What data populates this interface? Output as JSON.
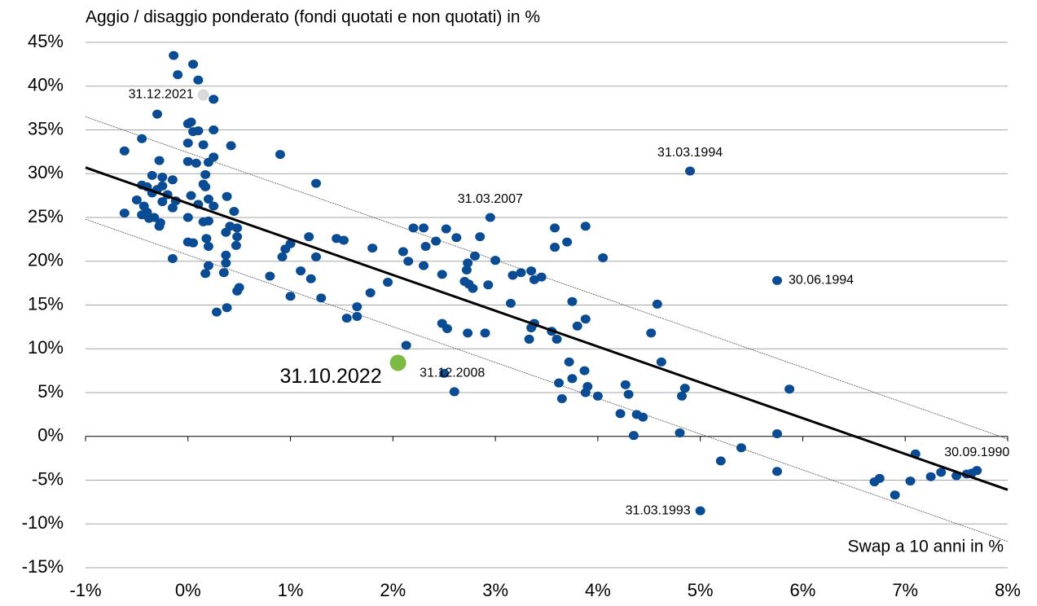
{
  "chart_data": {
    "type": "scatter",
    "title": "Aggio / disaggio ponderato (fondi quotati e non quotati) in %",
    "x_label": "Swap a 10 anni in %",
    "xlim": [
      -1,
      8
    ],
    "xticks": [
      {
        "value": -1,
        "label": "-1%"
      },
      {
        "value": 0,
        "label": "0%"
      },
      {
        "value": 1,
        "label": "1%"
      },
      {
        "value": 2,
        "label": "2%"
      },
      {
        "value": 3,
        "label": "3%"
      },
      {
        "value": 4,
        "label": "4%"
      },
      {
        "value": 5,
        "label": "5%"
      },
      {
        "value": 6,
        "label": "6%"
      },
      {
        "value": 7,
        "label": "7%"
      },
      {
        "value": 8,
        "label": "8%"
      }
    ],
    "ylim": [
      -15,
      45
    ],
    "yticks": [
      {
        "value": 45,
        "label": "45%"
      },
      {
        "value": 40,
        "label": "40%"
      },
      {
        "value": 35,
        "label": "35%"
      },
      {
        "value": 30,
        "label": "30%"
      },
      {
        "value": 25,
        "label": "25%"
      },
      {
        "value": 20,
        "label": "20%"
      },
      {
        "value": 15,
        "label": "15%"
      },
      {
        "value": 10,
        "label": "10%"
      },
      {
        "value": 5,
        "label": "5%"
      },
      {
        "value": 0,
        "label": "0%"
      },
      {
        "value": -5,
        "label": "-5%"
      },
      {
        "value": -10,
        "label": "-10%"
      },
      {
        "value": -15,
        "label": "-15%"
      }
    ],
    "grid": true,
    "series": [
      {
        "color": "#0a4c94",
        "x": [
          -0.14,
          0.05,
          -0.1,
          0.1,
          0.25,
          -0.3,
          0.0,
          0.03,
          0.05,
          0.1,
          0.25,
          -0.45,
          -0.62,
          0.0,
          0.15,
          0.42,
          0.25,
          0.08,
          -0.28,
          0.0,
          0.2,
          0.17,
          -0.35,
          -0.25,
          -0.15,
          -0.45,
          -0.4,
          -0.3,
          -0.25,
          0.15,
          0.17,
          -0.2,
          -0.35,
          0.03,
          0.38,
          -0.5,
          -0.25,
          -0.12,
          0.2,
          -0.43,
          -0.15,
          0.1,
          0.25,
          -0.62,
          -0.45,
          -0.4,
          -0.38,
          -0.33,
          -0.27,
          -0.28,
          0.0,
          0.15,
          0.2,
          0.41,
          0.45,
          0.48,
          0.37,
          0.48,
          0.18,
          0.05,
          0.0,
          0.2,
          0.47,
          -0.15,
          0.37,
          0.37,
          0.2,
          0.17,
          0.35,
          0.48,
          0.5,
          0.28,
          0.38,
          0.9,
          1.25,
          0.92,
          0.95,
          1.0,
          1.1,
          1.18,
          1.2,
          1.25,
          0.8,
          1.0,
          1.3,
          1.45,
          1.52,
          1.55,
          1.65,
          1.65,
          1.78,
          1.8,
          1.95,
          2.1,
          2.15,
          2.2,
          2.3,
          2.32,
          2.3,
          2.42,
          2.48,
          2.52,
          2.62,
          2.48,
          2.53,
          2.13,
          2.6,
          2.73,
          2.7,
          2.74,
          2.72,
          2.73,
          2.8,
          2.78,
          2.85,
          2.93,
          2.95,
          3.0,
          2.9,
          3.15,
          3.17,
          3.25,
          3.35,
          3.38,
          3.45,
          3.35,
          3.38,
          3.33,
          3.55,
          3.6,
          3.58,
          3.58,
          3.7,
          3.75,
          3.8,
          3.88,
          3.88,
          4.05,
          3.72,
          3.75,
          3.62,
          3.65,
          3.87,
          3.9,
          3.88,
          4.0,
          4.22,
          4.27,
          4.3,
          4.35,
          4.38,
          4.44,
          4.52,
          4.58,
          4.62,
          4.82,
          4.85,
          4.8,
          4.9,
          5.0,
          5.2,
          5.4,
          5.75,
          5.75,
          5.75,
          5.87,
          6.7,
          6.75,
          6.9,
          7.05,
          7.1,
          7.25,
          7.35,
          7.5,
          7.6,
          7.65,
          7.7,
          2.5
        ],
        "y": [
          43.5,
          42.5,
          41.3,
          40.7,
          38.5,
          36.8,
          35.7,
          35.9,
          34.8,
          34.9,
          35,
          34,
          32.6,
          33.5,
          33.3,
          33.2,
          31.9,
          31.2,
          31.5,
          31.4,
          31.3,
          29.9,
          29.8,
          29.6,
          29.3,
          28.7,
          28.5,
          28.2,
          28.6,
          28.8,
          28.5,
          27.6,
          27.8,
          27.5,
          27.4,
          27,
          26.8,
          26.9,
          27.1,
          26.3,
          26.1,
          26.5,
          26.3,
          25.5,
          25.3,
          25.6,
          24.9,
          25,
          24.4,
          24,
          25,
          24.5,
          24.6,
          24,
          25.7,
          23.8,
          23.3,
          22.8,
          22.6,
          22.1,
          22.2,
          21.7,
          21.8,
          20.3,
          20.7,
          19.8,
          19.5,
          18.6,
          18.7,
          16.6,
          17,
          14.2,
          14.7,
          32.2,
          28.9,
          20.5,
          21.4,
          22,
          18.9,
          22.8,
          18,
          20.5,
          18.3,
          16,
          15.8,
          22.6,
          22.4,
          13.5,
          14.8,
          13.7,
          16.4,
          21.5,
          17.6,
          21.1,
          20,
          23.8,
          23.8,
          21.7,
          19.5,
          22.3,
          18.5,
          23.7,
          22.7,
          12.9,
          12.3,
          10.4,
          5.1,
          11.8,
          17.7,
          17.4,
          19,
          19.8,
          20.6,
          16.9,
          22.8,
          17.3,
          25,
          20.1,
          11.8,
          15.2,
          18.4,
          18.7,
          18.9,
          17.9,
          18.2,
          12.4,
          12.9,
          11.1,
          12,
          11.1,
          23.8,
          21.6,
          22.2,
          15.4,
          12.6,
          13.4,
          24,
          20.4,
          8.5,
          6.6,
          6.1,
          4.3,
          7.5,
          5.7,
          5,
          4.6,
          2.6,
          5.9,
          4.8,
          0.1,
          2.5,
          2.2,
          11.8,
          15.1,
          8.5,
          4.6,
          5.5,
          0.4,
          30.3,
          -8.5,
          -2.8,
          -1.3,
          17.8,
          0.3,
          -4,
          5.4,
          -5.2,
          -4.8,
          -6.7,
          -5.1,
          -2,
          -4.6,
          -4.1,
          -4.5,
          -4.3,
          -4.2,
          -3.9,
          7.2
        ]
      }
    ],
    "highlights": [
      {
        "x": 0.15,
        "y": 39,
        "color": "#d9d9d9"
      },
      {
        "x": 2.05,
        "y": 8.4,
        "color": "#7cba43",
        "emphasis": true
      }
    ],
    "fit_line": {
      "x": [
        -1,
        8
      ],
      "y": [
        30.7,
        -6.1
      ],
      "color": "#000000"
    },
    "band_upper": {
      "x": [
        -1,
        8
      ],
      "y": [
        36.5,
        -0.3
      ],
      "color": "#555555"
    },
    "band_lower": {
      "x": [
        -1,
        8
      ],
      "y": [
        24.8,
        -12.0
      ],
      "color": "#555555"
    },
    "annotations": [
      {
        "text": "31.12.2021",
        "x": 0.15,
        "y": 39,
        "position": "left"
      },
      {
        "text": "31.03.1994",
        "x": 4.9,
        "y": 30.3,
        "position": "above"
      },
      {
        "text": "31.03.2007",
        "x": 2.95,
        "y": 25,
        "position": "above"
      },
      {
        "text": "30.06.1994",
        "x": 5.75,
        "y": 17.8,
        "position": "right"
      },
      {
        "text": "31.12.2008",
        "x": 2.5,
        "y": 7.2,
        "position": "center"
      },
      {
        "text": "31.03.1993",
        "x": 5.0,
        "y": -8.5,
        "position": "left"
      },
      {
        "text": "30.09.1990",
        "x": 7.7,
        "y": -3.9,
        "position": "above"
      },
      {
        "text": "31.10.2022",
        "x": 2.05,
        "y": 8.4,
        "position": "below-left",
        "emphasis": true
      }
    ]
  }
}
